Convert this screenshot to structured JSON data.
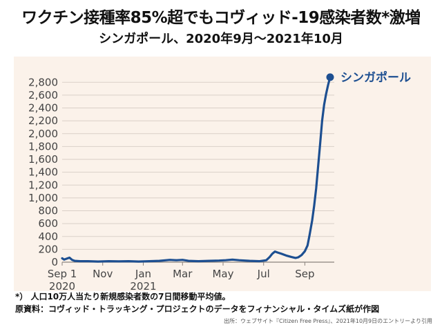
{
  "title": "ワクチン接種率85%超でもコヴィッド-19感染者数*激増",
  "subtitle": "シンガポール、2020年9月～2021年10月",
  "footnotes": {
    "note1": "*） 人口10万人当たり新規感染者数の7日間移動平均値。",
    "note2": "原資料：コヴィッド・トラッキング・プロジェクトのデータをフィナンシャル・タイムズ紙が作図"
  },
  "credit": "出所：ウェブサイト『Citizen Free Press』、2021年10月9日のエントリーより引用",
  "colors": {
    "line": "#1d4f91",
    "panel": "#fbf2ea",
    "grid": "#d9cfc7"
  },
  "chart_data": {
    "type": "line",
    "title": "ワクチン接種率85%超でもコヴィッド-19感染者数*激増",
    "subtitle": "シンガポール、2020年9月～2021年10月",
    "xlabel": "",
    "ylabel": "",
    "ylim": [
      0,
      2900
    ],
    "yticks": [
      0,
      200,
      400,
      600,
      800,
      1000,
      1200,
      1400,
      1600,
      1800,
      2000,
      2200,
      2400,
      2600,
      2800
    ],
    "ytick_labels": [
      "0",
      "200",
      "400",
      "600",
      "800",
      "1,000",
      "1,200",
      "1,400",
      "1,600",
      "1,800",
      "2,000",
      "2,200",
      "2,400",
      "2,600",
      "2,800"
    ],
    "xlim": [
      "2020-09-01",
      "2021-10-09"
    ],
    "xticks": [
      {
        "date": "2020-09-01",
        "label": "Sep 1",
        "year": "2020"
      },
      {
        "date": "2020-11-01",
        "label": "Nov",
        "year": ""
      },
      {
        "date": "2021-01-01",
        "label": "Jan",
        "year": "2021"
      },
      {
        "date": "2021-03-01",
        "label": "Mar",
        "year": ""
      },
      {
        "date": "2021-05-01",
        "label": "May",
        "year": ""
      },
      {
        "date": "2021-07-01",
        "label": "Jul",
        "year": ""
      },
      {
        "date": "2021-09-01",
        "label": "Sep",
        "year": ""
      }
    ],
    "grid": true,
    "series": [
      {
        "name": "シンガポール",
        "points": [
          [
            "2020-09-01",
            60
          ],
          [
            "2020-09-04",
            40
          ],
          [
            "2020-09-08",
            55
          ],
          [
            "2020-09-12",
            70
          ],
          [
            "2020-09-16",
            35
          ],
          [
            "2020-09-20",
            20
          ],
          [
            "2020-09-28",
            15
          ],
          [
            "2020-10-10",
            15
          ],
          [
            "2020-10-25",
            10
          ],
          [
            "2020-11-10",
            15
          ],
          [
            "2020-11-25",
            12
          ],
          [
            "2020-12-10",
            15
          ],
          [
            "2020-12-25",
            10
          ],
          [
            "2021-01-10",
            15
          ],
          [
            "2021-01-25",
            20
          ],
          [
            "2021-02-10",
            35
          ],
          [
            "2021-02-20",
            30
          ],
          [
            "2021-03-01",
            35
          ],
          [
            "2021-03-10",
            20
          ],
          [
            "2021-03-25",
            15
          ],
          [
            "2021-04-10",
            20
          ],
          [
            "2021-04-25",
            25
          ],
          [
            "2021-05-05",
            30
          ],
          [
            "2021-05-15",
            40
          ],
          [
            "2021-05-25",
            30
          ],
          [
            "2021-06-10",
            20
          ],
          [
            "2021-06-25",
            15
          ],
          [
            "2021-07-05",
            30
          ],
          [
            "2021-07-10",
            80
          ],
          [
            "2021-07-14",
            130
          ],
          [
            "2021-07-18",
            165
          ],
          [
            "2021-07-22",
            150
          ],
          [
            "2021-07-28",
            130
          ],
          [
            "2021-08-05",
            100
          ],
          [
            "2021-08-12",
            80
          ],
          [
            "2021-08-18",
            65
          ],
          [
            "2021-08-22",
            75
          ],
          [
            "2021-08-27",
            110
          ],
          [
            "2021-09-01",
            170
          ],
          [
            "2021-09-05",
            260
          ],
          [
            "2021-09-08",
            420
          ],
          [
            "2021-09-12",
            650
          ],
          [
            "2021-09-15",
            880
          ],
          [
            "2021-09-18",
            1150
          ],
          [
            "2021-09-21",
            1500
          ],
          [
            "2021-09-24",
            1850
          ],
          [
            "2021-09-27",
            2200
          ],
          [
            "2021-09-30",
            2450
          ],
          [
            "2021-10-03",
            2620
          ],
          [
            "2021-10-06",
            2760
          ],
          [
            "2021-10-09",
            2880
          ]
        ]
      }
    ]
  }
}
